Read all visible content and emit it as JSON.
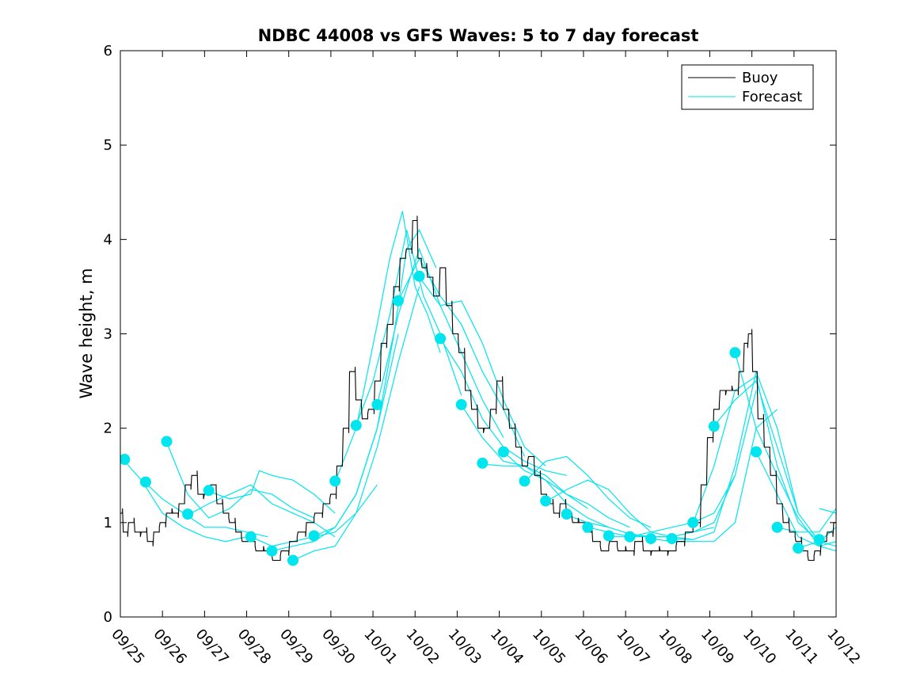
{
  "chart_data": {
    "type": "line",
    "title": "NDBC 44008 vs GFS Waves: 5 to 7 day forecast",
    "xlabel": "",
    "ylabel": "Wave height, m",
    "xlim": [
      0,
      17
    ],
    "ylim": [
      0,
      6
    ],
    "yticks": [
      0,
      1,
      2,
      3,
      4,
      5,
      6
    ],
    "xticks": [
      0,
      1,
      2,
      3,
      4,
      5,
      6,
      7,
      8,
      9,
      10,
      11,
      12,
      13,
      14,
      15,
      16,
      17
    ],
    "xtick_labels": [
      "09/25",
      "09/26",
      "09/27",
      "09/28",
      "09/29",
      "09/30",
      "10/01",
      "10/02",
      "10/03",
      "10/04",
      "10/05",
      "10/06",
      "10/07",
      "10/08",
      "10/09",
      "10/10",
      "10/11",
      "10/12"
    ],
    "x_units": "days since 09/25 00:00",
    "legend": {
      "location": "top-right",
      "entries": [
        {
          "label": "Buoy",
          "color": "#000000"
        },
        {
          "label": "Forecast",
          "color": "#00e5ee"
        }
      ]
    },
    "series": [
      {
        "name": "Buoy",
        "color": "#000000",
        "x": [
          0,
          0.1,
          0.25,
          0.4,
          0.55,
          0.7,
          0.85,
          1.0,
          1.15,
          1.3,
          1.45,
          1.6,
          1.75,
          1.9,
          2.05,
          2.2,
          2.35,
          2.5,
          2.65,
          2.8,
          2.95,
          3.1,
          3.3,
          3.5,
          3.7,
          3.9,
          4.1,
          4.3,
          4.5,
          4.7,
          4.9,
          5.05,
          5.2,
          5.35,
          5.5,
          5.65,
          5.8,
          5.95,
          6.1,
          6.25,
          6.4,
          6.55,
          6.7,
          6.85,
          7.0,
          7.1,
          7.2,
          7.35,
          7.5,
          7.65,
          7.8,
          7.95,
          8.1,
          8.25,
          8.4,
          8.55,
          8.7,
          8.85,
          9.0,
          9.15,
          9.3,
          9.45,
          9.6,
          9.75,
          9.9,
          10.05,
          10.2,
          10.35,
          10.5,
          10.65,
          10.8,
          10.95,
          11.1,
          11.3,
          11.5,
          11.7,
          11.9,
          12.1,
          12.3,
          12.5,
          12.7,
          12.9,
          13.1,
          13.3,
          13.5,
          13.7,
          13.85,
          14.0,
          14.15,
          14.3,
          14.45,
          14.6,
          14.75,
          14.85,
          14.95,
          15.05,
          15.2,
          15.35,
          15.5,
          15.65,
          15.8,
          15.95,
          16.1,
          16.25,
          16.4,
          16.55,
          16.7,
          16.85,
          17.0
        ],
        "y": [
          1.1,
          0.9,
          1.0,
          0.9,
          0.9,
          0.8,
          0.9,
          1.0,
          1.1,
          1.1,
          1.2,
          1.4,
          1.5,
          1.3,
          1.3,
          1.4,
          1.2,
          1.1,
          1.0,
          0.9,
          0.8,
          0.8,
          0.7,
          0.7,
          0.6,
          0.7,
          0.8,
          0.9,
          1.0,
          1.1,
          1.2,
          1.3,
          1.6,
          2.0,
          2.6,
          2.3,
          2.1,
          2.2,
          2.5,
          2.9,
          3.1,
          3.5,
          3.8,
          3.9,
          4.2,
          3.8,
          3.7,
          3.6,
          3.4,
          3.7,
          3.3,
          3.0,
          2.8,
          2.4,
          2.2,
          2.0,
          2.0,
          2.2,
          2.5,
          2.2,
          2.0,
          1.8,
          1.6,
          1.7,
          1.5,
          1.3,
          1.2,
          1.1,
          1.2,
          1.1,
          1.0,
          1.0,
          0.9,
          0.8,
          0.7,
          0.8,
          0.7,
          0.7,
          0.8,
          0.7,
          0.7,
          0.7,
          0.7,
          0.8,
          0.9,
          1.0,
          1.4,
          1.9,
          2.2,
          2.4,
          2.4,
          2.4,
          2.6,
          2.9,
          3.0,
          2.6,
          2.1,
          1.8,
          1.5,
          1.2,
          1.0,
          0.9,
          0.8,
          0.7,
          0.6,
          0.7,
          0.8,
          0.9,
          1.0
        ]
      },
      {
        "name": "Forecast",
        "color": "#00e5ee",
        "segments": [
          {
            "x": [
              0.1,
              0.5,
              1.0,
              1.5,
              2.0,
              2.5,
              3.0
            ],
            "y": [
              1.65,
              1.45,
              1.1,
              0.95,
              0.85,
              0.8,
              0.85
            ]
          },
          {
            "x": [
              0.6,
              1.0,
              1.5,
              2.0,
              2.5,
              3.0,
              3.5
            ],
            "y": [
              1.42,
              1.25,
              1.1,
              0.95,
              0.95,
              0.9,
              0.85
            ]
          },
          {
            "x": [
              1.1,
              1.6,
              2.1,
              2.6,
              3.1,
              3.6,
              4.1,
              4.6
            ],
            "y": [
              1.85,
              1.3,
              1.05,
              1.15,
              1.35,
              1.3,
              1.15,
              1.05
            ]
          },
          {
            "x": [
              1.6,
              2.1,
              2.6,
              3.1,
              3.6,
              4.1,
              4.6,
              5.1
            ],
            "y": [
              1.08,
              1.2,
              1.3,
              1.4,
              1.2,
              1.1,
              1.0,
              0.85
            ]
          },
          {
            "x": [
              2.1,
              2.6,
              3.1,
              3.3,
              3.6,
              4.1,
              4.6,
              5.1
            ],
            "y": [
              1.33,
              1.25,
              1.3,
              1.55,
              1.5,
              1.45,
              1.3,
              1.1
            ]
          },
          {
            "x": [
              3.1,
              3.6,
              4.1,
              4.6,
              5.1,
              5.6,
              6.1
            ],
            "y": [
              0.85,
              0.75,
              0.8,
              0.85,
              0.9,
              1.1,
              1.4
            ]
          },
          {
            "x": [
              3.6,
              4.1,
              4.6,
              5.1,
              5.6,
              6.1,
              6.6
            ],
            "y": [
              0.7,
              0.75,
              0.8,
              0.95,
              1.3,
              2.0,
              3.0
            ]
          },
          {
            "x": [
              4.1,
              4.6,
              5.1,
              5.6,
              6.1,
              6.6,
              7.1
            ],
            "y": [
              0.6,
              0.7,
              0.75,
              1.1,
              1.8,
              2.7,
              3.5
            ]
          },
          {
            "x": [
              4.6,
              5.1,
              5.6,
              6.1,
              6.5,
              6.8,
              7.1,
              7.5
            ],
            "y": [
              0.86,
              0.95,
              1.3,
              2.0,
              3.0,
              3.9,
              4.1,
              3.7
            ]
          },
          {
            "x": [
              5.1,
              5.6,
              6.1,
              6.4,
              6.7,
              7.0,
              7.3,
              7.6
            ],
            "y": [
              1.43,
              2.0,
              3.1,
              3.8,
              4.3,
              3.5,
              3.2,
              2.8
            ]
          },
          {
            "x": [
              5.6,
              6.0,
              6.4,
              6.8,
              7.2,
              7.6,
              8.1
            ],
            "y": [
              2.03,
              2.5,
              3.2,
              4.1,
              3.4,
              3.0,
              2.35
            ]
          },
          {
            "x": [
              6.1,
              6.6,
              7.1,
              7.6,
              8.1,
              8.6,
              9.1
            ],
            "y": [
              2.25,
              3.2,
              3.9,
              3.3,
              2.8,
              2.3,
              1.9
            ]
          },
          {
            "x": [
              6.6,
              7.1,
              7.6,
              8.1,
              8.6,
              9.1,
              9.6
            ],
            "y": [
              3.35,
              3.8,
              3.4,
              3.1,
              2.6,
              2.2,
              1.7
            ]
          },
          {
            "x": [
              7.1,
              7.6,
              8.1,
              8.6,
              9.1,
              9.6,
              10.1
            ],
            "y": [
              3.6,
              3.3,
              3.35,
              2.9,
              2.3,
              1.8,
              1.6
            ]
          },
          {
            "x": [
              7.6,
              8.1,
              8.6,
              9.1,
              9.6,
              10.1,
              10.6
            ],
            "y": [
              2.95,
              2.6,
              2.1,
              1.8,
              1.65,
              1.55,
              1.5
            ]
          },
          {
            "x": [
              8.1,
              8.6,
              9.1,
              9.6,
              10.1,
              10.6,
              11.1
            ],
            "y": [
              2.25,
              1.9,
              1.65,
              1.6,
              1.5,
              1.3,
              1.15
            ]
          },
          {
            "x": [
              8.6,
              9.1,
              9.6,
              10.1,
              10.6,
              11.1,
              11.6
            ],
            "y": [
              1.62,
              1.6,
              1.6,
              1.45,
              1.2,
              1.05,
              0.95
            ]
          },
          {
            "x": [
              9.1,
              9.6,
              10.1,
              10.6,
              11.1,
              11.6,
              12.1
            ],
            "y": [
              1.75,
              1.55,
              1.45,
              1.3,
              1.2,
              1.05,
              0.95
            ]
          },
          {
            "x": [
              9.6,
              10.1,
              10.6,
              11.1,
              11.6,
              12.1,
              12.6
            ],
            "y": [
              1.43,
              1.65,
              1.7,
              1.5,
              1.25,
              1.05,
              0.95
            ]
          },
          {
            "x": [
              10.1,
              10.6,
              11.1,
              11.6,
              12.1,
              12.6,
              13.1
            ],
            "y": [
              1.22,
              1.35,
              1.45,
              1.35,
              1.1,
              0.9,
              0.85
            ]
          },
          {
            "x": [
              10.6,
              11.1,
              11.6,
              12.1,
              12.6,
              13.1,
              13.6
            ],
            "y": [
              1.08,
              1.0,
              0.95,
              0.88,
              0.85,
              0.85,
              0.82
            ]
          },
          {
            "x": [
              11.1,
              11.6,
              12.1,
              12.6,
              13.1,
              13.6,
              14.1
            ],
            "y": [
              0.95,
              0.9,
              0.85,
              0.85,
              0.85,
              0.9,
              0.95
            ]
          },
          {
            "x": [
              11.6,
              12.1,
              12.6,
              13.1,
              13.6,
              14.1,
              14.6
            ],
            "y": [
              0.85,
              0.85,
              0.9,
              0.95,
              1.0,
              1.1,
              1.5
            ]
          },
          {
            "x": [
              12.1,
              12.6,
              13.1,
              13.6,
              14.1,
              14.6,
              15.1
            ],
            "y": [
              0.86,
              0.85,
              0.85,
              0.9,
              1.0,
              1.5,
              2.4
            ]
          },
          {
            "x": [
              12.6,
              13.1,
              13.6,
              14.1,
              14.6,
              15.1,
              15.6
            ],
            "y": [
              0.83,
              0.8,
              0.8,
              0.8,
              1.0,
              2.0,
              2.2
            ]
          },
          {
            "x": [
              13.1,
              13.6,
              14.1,
              14.6,
              15.1,
              15.6,
              16.1
            ],
            "y": [
              0.83,
              0.82,
              0.9,
              1.6,
              2.6,
              2.0,
              1.1
            ]
          },
          {
            "x": [
              13.6,
              14.1,
              14.6,
              15.1,
              15.6,
              16.1,
              16.6
            ],
            "y": [
              0.99,
              1.6,
              2.4,
              2.55,
              1.6,
              1.0,
              0.8
            ]
          },
          {
            "x": [
              14.1,
              14.6,
              15.1,
              15.6,
              16.1,
              16.6,
              17.0
            ],
            "y": [
              2.02,
              2.3,
              2.5,
              1.8,
              1.1,
              0.8,
              0.75
            ]
          },
          {
            "x": [
              14.6,
              15.1,
              15.6,
              16.1,
              16.6,
              17.0
            ],
            "y": [
              2.8,
              2.0,
              1.5,
              1.05,
              0.75,
              0.7
            ]
          },
          {
            "x": [
              15.1,
              15.6,
              16.1,
              16.6,
              17.0
            ],
            "y": [
              1.75,
              1.3,
              0.85,
              0.75,
              0.8
            ]
          },
          {
            "x": [
              15.6,
              16.1,
              16.6,
              17.0
            ],
            "y": [
              0.95,
              0.9,
              0.9,
              1.15
            ]
          },
          {
            "x": [
              16.1,
              16.6,
              17.0
            ],
            "y": [
              0.73,
              0.8,
              0.95
            ]
          },
          {
            "x": [
              16.6,
              17.0
            ],
            "y": [
              1.15,
              1.1
            ]
          }
        ],
        "markers": {
          "x": [
            0.1,
            0.6,
            1.1,
            1.6,
            2.1,
            3.1,
            3.6,
            4.1,
            4.6,
            5.1,
            5.6,
            6.1,
            6.6,
            7.1,
            7.6,
            8.1,
            8.6,
            9.1,
            9.6,
            10.1,
            10.6,
            11.1,
            11.6,
            12.1,
            12.6,
            13.1,
            13.6,
            14.1,
            14.6,
            15.1,
            15.6,
            16.1,
            16.6
          ],
          "y": [
            1.67,
            1.43,
            1.86,
            1.09,
            1.34,
            0.85,
            0.7,
            0.6,
            0.86,
            1.44,
            2.03,
            2.25,
            3.35,
            3.61,
            2.95,
            2.25,
            1.63,
            1.75,
            1.44,
            1.23,
            1.09,
            0.95,
            0.86,
            0.85,
            0.83,
            0.83,
            1.0,
            2.02,
            2.8,
            1.75,
            0.95,
            0.73,
            0.82
          ]
        }
      }
    ]
  }
}
